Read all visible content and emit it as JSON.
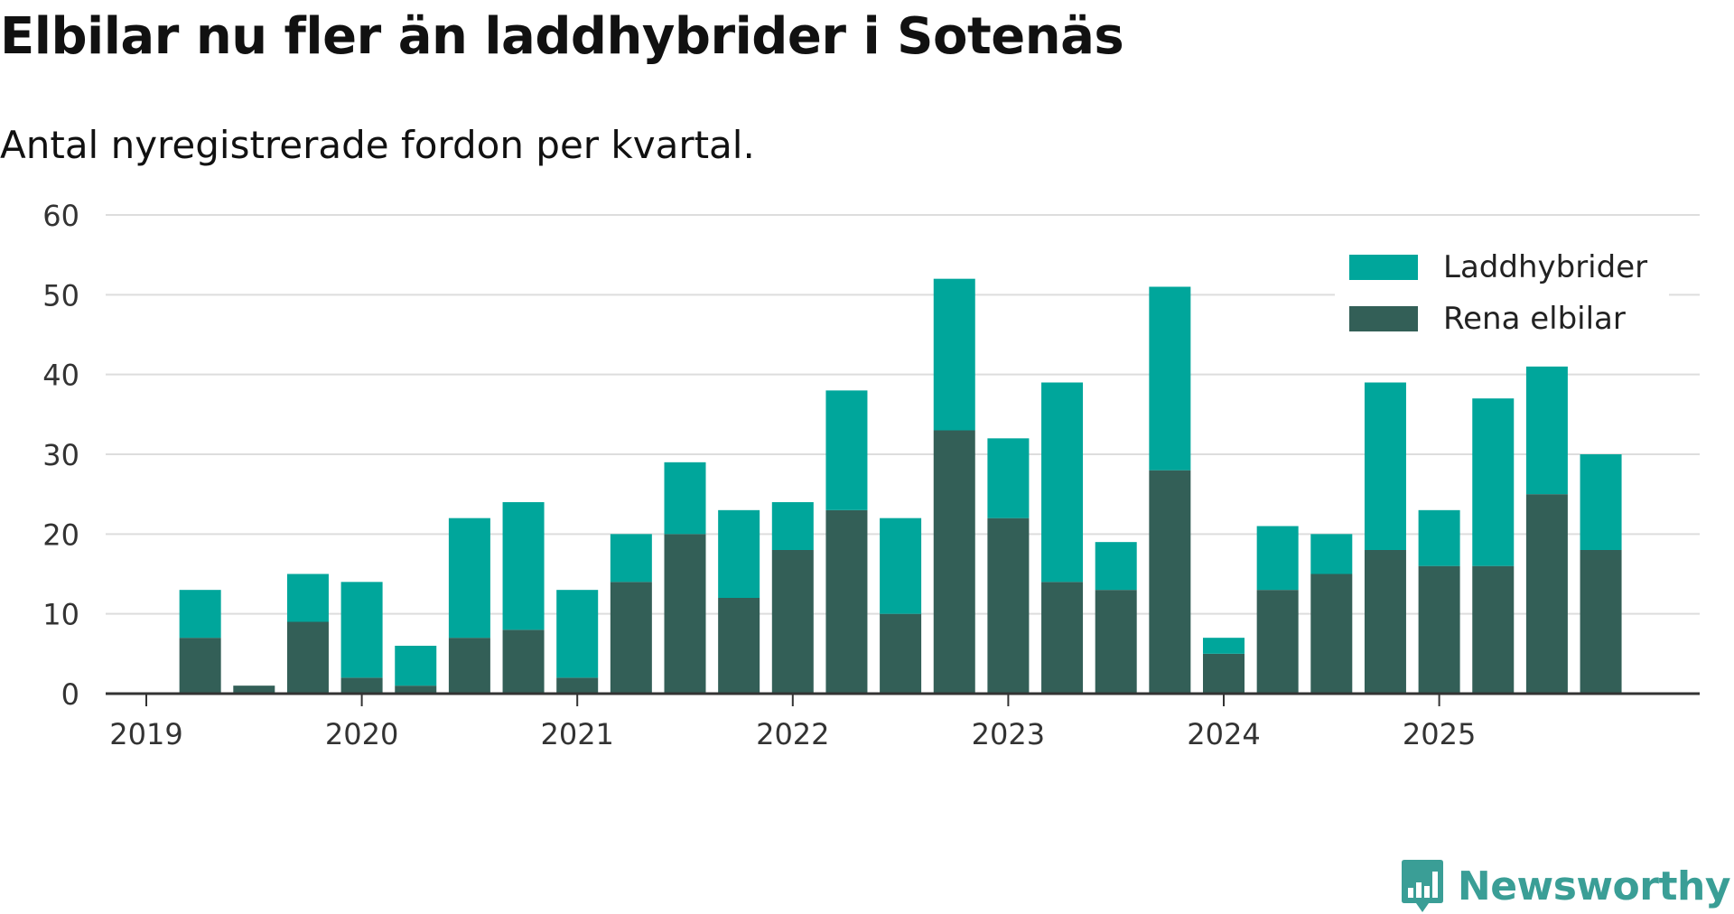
{
  "chart_data": {
    "type": "bar",
    "stacked": true,
    "title": "Elbilar nu fler än laddhybrider i Sotenäs",
    "subtitle": "Antal nyregistrerade fordon per kvartal.",
    "xlabel": "",
    "ylabel": "",
    "ylim": [
      0,
      60
    ],
    "yticks": [
      0,
      10,
      20,
      30,
      40,
      50,
      60
    ],
    "xticks": [
      "2019",
      "2020",
      "2021",
      "2022",
      "2023",
      "2024",
      "2025"
    ],
    "grid": true,
    "legend_position": "top-right",
    "categories": [
      "2019 Q1",
      "2019 Q2",
      "2019 Q3",
      "2019 Q4",
      "2020 Q1",
      "2020 Q2",
      "2020 Q3",
      "2020 Q4",
      "2021 Q1",
      "2021 Q2",
      "2021 Q3",
      "2021 Q4",
      "2022 Q1",
      "2022 Q2",
      "2022 Q3",
      "2022 Q4",
      "2023 Q1",
      "2023 Q2",
      "2023 Q3",
      "2023 Q4",
      "2024 Q1",
      "2024 Q2",
      "2024 Q3",
      "2024 Q4",
      "2025 Q1",
      "2025 Q2",
      "2025 Q3",
      "2025 Q4"
    ],
    "series": [
      {
        "name": "Rena elbilar",
        "color": "#335f57",
        "values": [
          0,
          7,
          1,
          9,
          2,
          1,
          7,
          8,
          2,
          14,
          20,
          12,
          18,
          23,
          10,
          33,
          22,
          14,
          13,
          28,
          5,
          13,
          15,
          18,
          16,
          16,
          25,
          18
        ]
      },
      {
        "name": "Laddhybrider",
        "color": "#00a69b",
        "values": [
          0,
          6,
          0,
          6,
          12,
          5,
          15,
          16,
          11,
          6,
          9,
          11,
          6,
          15,
          12,
          19,
          10,
          25,
          6,
          23,
          2,
          8,
          5,
          21,
          7,
          21,
          16,
          12
        ]
      }
    ]
  },
  "brand": {
    "name": "Newsworthy",
    "icon": "newsworthy-logo-icon",
    "color": "#3a9e96"
  }
}
